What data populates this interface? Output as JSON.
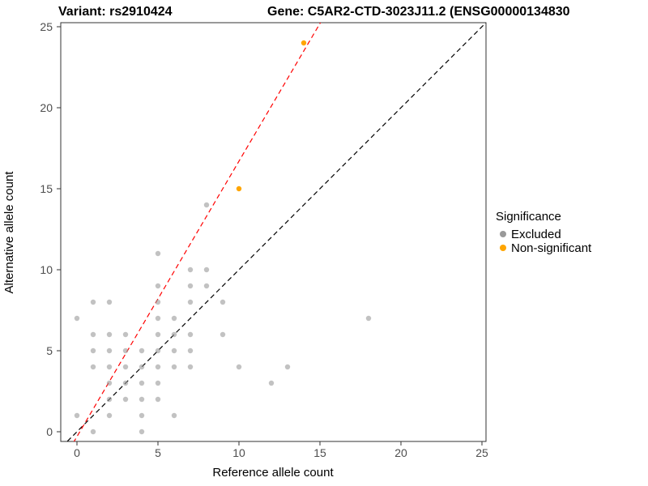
{
  "chart_data": {
    "type": "scatter",
    "titles": {
      "left": "Variant: rs2910424",
      "right": "Gene: C5AR2-CTD-3023J11.2 (ENSG00000134830"
    },
    "xlabel": "Reference allele count",
    "ylabel": "Alternative allele count",
    "x_ticks": [
      0,
      5,
      10,
      15,
      20,
      25
    ],
    "y_ticks": [
      0,
      5,
      10,
      15,
      20,
      25
    ],
    "xlim": [
      -1,
      25.25
    ],
    "ylim": [
      -0.6,
      25.25
    ],
    "grid": false,
    "legend": {
      "title": "Significance",
      "position": "right",
      "items": [
        {
          "label": "Excluded",
          "color": "#999999"
        },
        {
          "label": "Non-significant",
          "color": "#FFA500"
        }
      ]
    },
    "series": [
      {
        "name": "Excluded",
        "color": "#999999",
        "opacity": 0.6,
        "points": [
          [
            0,
            7
          ],
          [
            0,
            1
          ],
          [
            1,
            8
          ],
          [
            1,
            6
          ],
          [
            1,
            5
          ],
          [
            1,
            4
          ],
          [
            1,
            0
          ],
          [
            2,
            8
          ],
          [
            2,
            6
          ],
          [
            2,
            5
          ],
          [
            2,
            4
          ],
          [
            2,
            3
          ],
          [
            2,
            2
          ],
          [
            2,
            1
          ],
          [
            3,
            6
          ],
          [
            3,
            5
          ],
          [
            3,
            4
          ],
          [
            3,
            3
          ],
          [
            3,
            2
          ],
          [
            4,
            5
          ],
          [
            4,
            4
          ],
          [
            4,
            3
          ],
          [
            4,
            2
          ],
          [
            4,
            1
          ],
          [
            4,
            0
          ],
          [
            5,
            11
          ],
          [
            5,
            9
          ],
          [
            5,
            8
          ],
          [
            5,
            7
          ],
          [
            5,
            6
          ],
          [
            5,
            5
          ],
          [
            5,
            4
          ],
          [
            5,
            3
          ],
          [
            5,
            2
          ],
          [
            6,
            7
          ],
          [
            6,
            6
          ],
          [
            6,
            5
          ],
          [
            6,
            4
          ],
          [
            6,
            1
          ],
          [
            7,
            10
          ],
          [
            7,
            9
          ],
          [
            7,
            8
          ],
          [
            7,
            6
          ],
          [
            7,
            5
          ],
          [
            7,
            4
          ],
          [
            8,
            14
          ],
          [
            8,
            10
          ],
          [
            8,
            9
          ],
          [
            9,
            8
          ],
          [
            9,
            6
          ],
          [
            10,
            4
          ],
          [
            12,
            3
          ],
          [
            13,
            4
          ],
          [
            18,
            7
          ]
        ]
      },
      {
        "name": "Non-significant",
        "color": "#FFA500",
        "opacity": 1,
        "points": [
          [
            10,
            15
          ],
          [
            14,
            24
          ]
        ]
      }
    ],
    "lines": [
      {
        "name": "identity-line",
        "color": "#000000",
        "style": "dashed",
        "slope": 1,
        "intercept": 0
      },
      {
        "name": "fit-line",
        "color": "#FF0000",
        "style": "dashed",
        "slope": 1.7,
        "intercept": -0.3
      }
    ]
  }
}
